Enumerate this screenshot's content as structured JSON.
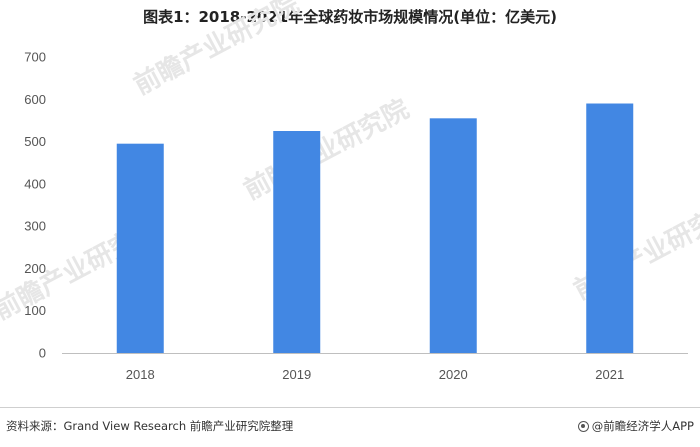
{
  "header": {
    "title": "图表1：2018-2021年全球药妆市场规模情况(单位：亿美元)"
  },
  "footer": {
    "source": "资料来源：Grand View Research 前瞻产业研究院整理",
    "brand": "@前瞻经济学人APP",
    "brand_icon": "brand-logo-icon"
  },
  "watermark": {
    "text": "前瞻产业研究院"
  },
  "colors": {
    "bar": "#4287e3",
    "axis": "#bfbfbf"
  },
  "chart_data": {
    "type": "bar",
    "title": "图表1：2018-2021年全球药妆市场规模情况(单位：亿美元)",
    "categories": [
      "2018",
      "2019",
      "2020",
      "2021"
    ],
    "values": [
      495,
      525,
      555,
      590
    ],
    "xlabel": "",
    "ylabel": "",
    "ylim": [
      0,
      700
    ],
    "yticks": [
      0,
      100,
      200,
      300,
      400,
      500,
      600,
      700
    ],
    "grid": false,
    "legend": "none"
  }
}
